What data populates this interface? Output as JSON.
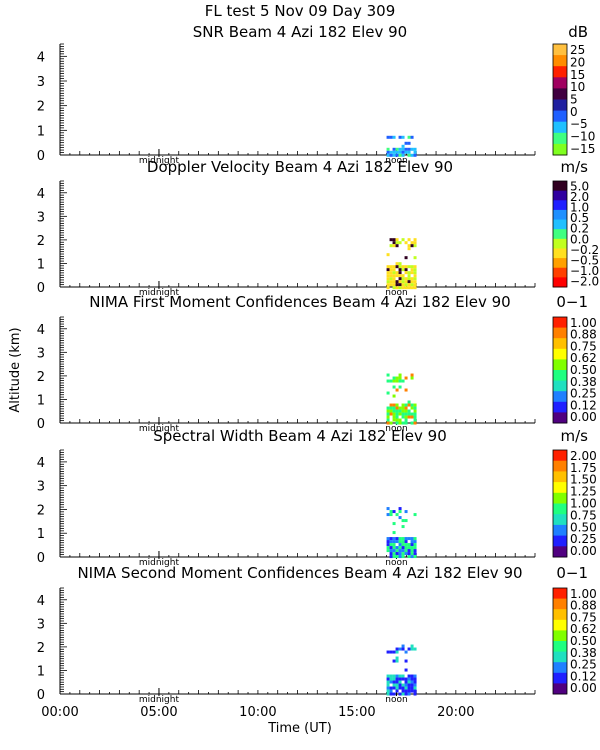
{
  "header": {
    "line": "FL test   5 Nov 09 Day 309"
  },
  "shared": {
    "ylabel": "Altitude (km)",
    "xlabel": "Time (UT)",
    "x_tick_labels": [
      "00:00",
      "05:00",
      "10:00",
      "15:00",
      "20:00"
    ],
    "x_ticks_hours": [
      0,
      5,
      10,
      15,
      20
    ],
    "xlim_hours": [
      0,
      24
    ],
    "midnight_label": "midnight",
    "noon_label": "noon",
    "midnight_hour": 5.0,
    "noon_hour": 17.0
  },
  "chart_data": [
    {
      "type": "heatmap",
      "title": "SNR Beam 4 Azi 182 Elev 90",
      "unit": "dB",
      "ylim": [
        0,
        4.5
      ],
      "yticks": [
        0,
        1,
        2,
        3,
        4
      ],
      "colorbar": {
        "labels": [
          "25",
          "20",
          "15",
          "10",
          "5",
          "0",
          "−5",
          "−10",
          "−15"
        ],
        "colors": [
          "#ffc040",
          "#ff8c00",
          "#ff2000",
          "#a00060",
          "#400040",
          "#2020a0",
          "#2060ff",
          "#20c0ff",
          "#40ff80",
          "#80ff20"
        ]
      },
      "data_region": {
        "x_hours": [
          16.5,
          18.0
        ],
        "y_km": [
          0,
          0.9
        ],
        "dominant": [
          "#20c0ff",
          "#2060ff",
          "#40ff80"
        ]
      }
    },
    {
      "type": "heatmap",
      "title": "Doppler Velocity Beam 4 Azi 182 Elev 90",
      "unit": "m/s",
      "ylim": [
        0,
        4.5
      ],
      "yticks": [
        0,
        1,
        2,
        3,
        4
      ],
      "colorbar": {
        "labels": [
          "5.0",
          "2.0",
          "1.0",
          "0.5",
          "0.2",
          "0.0",
          "−0.2",
          "−0.5",
          "−1.0",
          "−2.0"
        ],
        "colors": [
          "#300020",
          "#3000a0",
          "#2020ff",
          "#2090ff",
          "#20c0ff",
          "#40ff80",
          "#c0ff20",
          "#ffe020",
          "#ffa000",
          "#ff4000",
          "#ff0000"
        ]
      },
      "data_region": {
        "x_hours": [
          16.5,
          18.0
        ],
        "y_km": [
          0,
          2.2
        ],
        "dominant": [
          "#ffe020",
          "#c0ff20",
          "#300020"
        ]
      }
    },
    {
      "type": "heatmap",
      "title": "NIMA First Moment Confidences Beam 4 Azi 182 Elev 90",
      "unit": "0−1",
      "ylim": [
        0,
        4.5
      ],
      "yticks": [
        0,
        1,
        2,
        3,
        4
      ],
      "colorbar": {
        "labels": [
          "1.00",
          "0.88",
          "0.75",
          "0.62",
          "0.50",
          "0.38",
          "0.25",
          "0.12",
          "0.00"
        ],
        "colors": [
          "#ff2000",
          "#ff8000",
          "#ffc000",
          "#ffff00",
          "#80ff00",
          "#20ff80",
          "#20e0c0",
          "#2080ff",
          "#2020ff",
          "#500080"
        ]
      },
      "data_region": {
        "x_hours": [
          16.5,
          18.0
        ],
        "y_km": [
          0,
          2.1
        ],
        "dominant": [
          "#20ff80",
          "#80ff00",
          "#ff8000"
        ]
      }
    },
    {
      "type": "heatmap",
      "title": "Spectral Width Beam 4 Azi 182 Elev 90",
      "unit": "m/s",
      "ylim": [
        0,
        4.5
      ],
      "yticks": [
        0,
        1,
        2,
        3,
        4
      ],
      "colorbar": {
        "labels": [
          "2.00",
          "1.75",
          "1.50",
          "1.25",
          "1.00",
          "0.75",
          "0.50",
          "0.25",
          "0.00"
        ],
        "colors": [
          "#ff2000",
          "#ff8000",
          "#ffc000",
          "#ffff00",
          "#80ff00",
          "#20ff80",
          "#20e0c0",
          "#2080ff",
          "#2020ff",
          "#500080"
        ]
      },
      "data_region": {
        "x_hours": [
          16.5,
          18.0
        ],
        "y_km": [
          0,
          2.1
        ],
        "dominant": [
          "#20ff80",
          "#2080ff",
          "#2020ff"
        ]
      }
    },
    {
      "type": "heatmap",
      "title": "NIMA Second Moment Confidences Beam 4 Azi 182 Elev 90",
      "unit": "0−1",
      "ylim": [
        0,
        4.5
      ],
      "yticks": [
        0,
        1,
        2,
        3,
        4
      ],
      "colorbar": {
        "labels": [
          "1.00",
          "0.88",
          "0.75",
          "0.62",
          "0.50",
          "0.38",
          "0.25",
          "0.12",
          "0.00"
        ],
        "colors": [
          "#ff2000",
          "#ff8000",
          "#ffc000",
          "#ffff00",
          "#80ff00",
          "#20ff80",
          "#20e0c0",
          "#2080ff",
          "#2020ff",
          "#500080"
        ]
      },
      "data_region": {
        "x_hours": [
          16.5,
          18.0
        ],
        "y_km": [
          0,
          2.1
        ],
        "dominant": [
          "#2020ff",
          "#20e0c0",
          "#2080ff"
        ]
      }
    }
  ]
}
